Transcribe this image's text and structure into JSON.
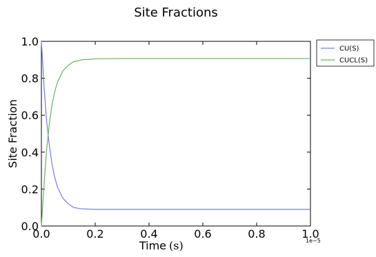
{
  "chart_data": {
    "type": "line",
    "title": "Site Fractions",
    "xlabel": "Time",
    "xlabel_unit": "(s)",
    "ylabel": "Site Fraction",
    "x_offset_label": "1e−5",
    "xlim": [
      0.0,
      1.0
    ],
    "ylim": [
      0.0,
      1.0
    ],
    "x_ticks": [
      "0.0",
      "0.2",
      "0.4",
      "0.6",
      "0.8",
      "1.0"
    ],
    "y_ticks": [
      "0.0",
      "0.2",
      "0.4",
      "0.6",
      "0.8",
      "1.0"
    ],
    "grid": false,
    "legend_position": "outside-top-right",
    "x": [
      0.0,
      0.01,
      0.02,
      0.03,
      0.04,
      0.05,
      0.06,
      0.08,
      0.1,
      0.12,
      0.15,
      0.2,
      0.3,
      0.4,
      0.5,
      0.6,
      0.7,
      0.8,
      0.9,
      1.0
    ],
    "series": [
      {
        "name": "CU(S)",
        "color": "#7777ee",
        "values": [
          1.0,
          0.75,
          0.56,
          0.43,
          0.33,
          0.26,
          0.21,
          0.15,
          0.12,
          0.1,
          0.093,
          0.09,
          0.09,
          0.09,
          0.09,
          0.09,
          0.09,
          0.09,
          0.09,
          0.09
        ]
      },
      {
        "name": "CUCL(S)",
        "color": "#66b266",
        "values": [
          0.0,
          0.23,
          0.42,
          0.56,
          0.66,
          0.73,
          0.78,
          0.84,
          0.87,
          0.89,
          0.9,
          0.905,
          0.907,
          0.907,
          0.907,
          0.907,
          0.907,
          0.907,
          0.907,
          0.907
        ]
      }
    ]
  }
}
